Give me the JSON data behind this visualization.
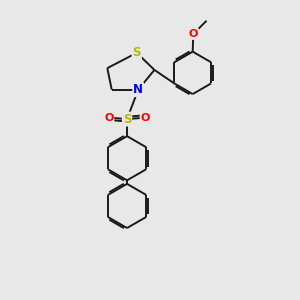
{
  "bg_color": "#e8e8e8",
  "bond_color": "#1a1a1a",
  "S_color": "#b8b800",
  "N_color": "#0000ff",
  "O_color": "#ff0000",
  "lw": 1.4,
  "dbo": 0.07,
  "xlim": [
    0,
    10
  ],
  "ylim": [
    0,
    10
  ]
}
